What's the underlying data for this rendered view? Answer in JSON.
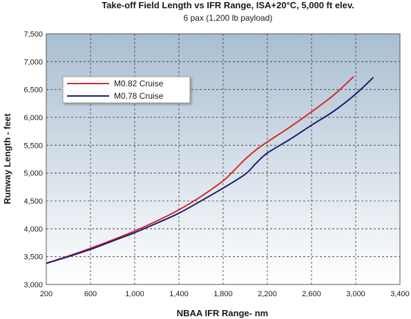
{
  "chart_data": {
    "type": "line",
    "title": "Take-off Field Length vs IFR Range, ISA+20°C, 5,000 ft elev.",
    "subtitle": "6 pax (1,200 lb payload)",
    "xlabel": "NBAA IFR Range- nm",
    "ylabel": "Runway Length - feet",
    "xlim": [
      200,
      3400
    ],
    "ylim": [
      3000,
      7500
    ],
    "xticks": [
      200,
      600,
      1000,
      1400,
      1800,
      2200,
      2600,
      3000,
      3400
    ],
    "yticks": [
      3000,
      3500,
      4000,
      4500,
      5000,
      5500,
      6000,
      6500,
      7000,
      7500
    ],
    "xtick_labels": [
      "200",
      "600",
      "1,000",
      "1,400",
      "1,800",
      "2,200",
      "2,600",
      "3,000",
      "3,400"
    ],
    "ytick_labels": [
      "3,000",
      "3,500",
      "4,000",
      "4,500",
      "5,000",
      "5,500",
      "6,000",
      "6,500",
      "7,000",
      "7,500"
    ],
    "grid": true,
    "legend_position": "upper-left",
    "series": [
      {
        "name": "M0.82 Cruise",
        "color": "#d42a2a",
        "x": [
          200,
          400,
          600,
          800,
          1000,
          1200,
          1400,
          1600,
          1800,
          1900,
          2000,
          2100,
          2200,
          2400,
          2600,
          2800,
          2980
        ],
        "y": [
          3380,
          3510,
          3650,
          3800,
          3960,
          4140,
          4340,
          4580,
          4860,
          5050,
          5250,
          5420,
          5560,
          5820,
          6100,
          6400,
          6730
        ]
      },
      {
        "name": "M0.78 Cruise",
        "color": "#1c1a73",
        "x": [
          200,
          400,
          600,
          800,
          1000,
          1200,
          1400,
          1600,
          1800,
          2000,
          2100,
          2200,
          2400,
          2600,
          2800,
          3000,
          3160
        ],
        "y": [
          3380,
          3500,
          3630,
          3780,
          3930,
          4100,
          4280,
          4500,
          4730,
          4980,
          5180,
          5360,
          5600,
          5860,
          6110,
          6420,
          6720
        ]
      }
    ]
  }
}
